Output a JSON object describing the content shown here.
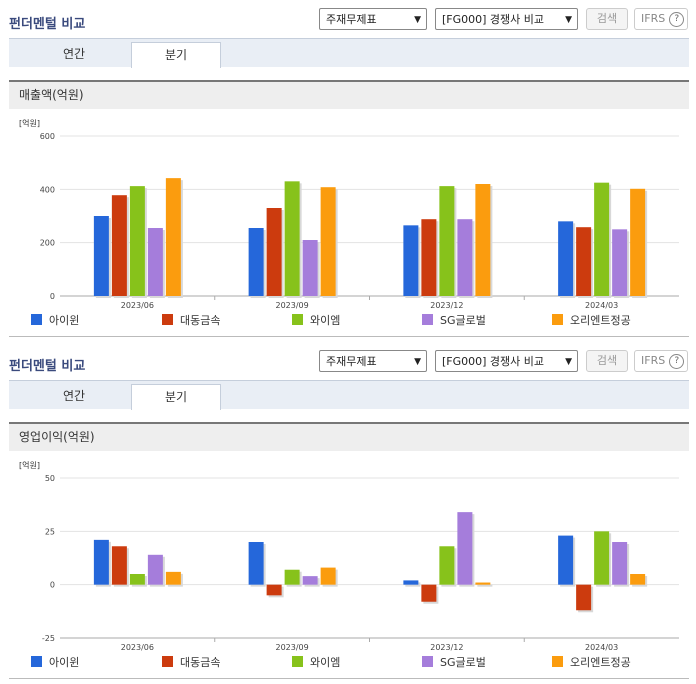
{
  "header": {
    "title": "펀더멘털 비교",
    "select_statement": "주재무제표",
    "select_compare": "[FG000] 경쟁사 비교",
    "search_button": "검색",
    "ifrs_label": "IFRS",
    "help_glyph": "?"
  },
  "tabs": [
    {
      "label": "연간"
    },
    {
      "label": "분기"
    }
  ],
  "colors": [
    "#2567da",
    "#cc3b0e",
    "#87c21b",
    "#a57ddb",
    "#fb9c0e"
  ],
  "chart_data": [
    {
      "type": "bar",
      "title": "매출액(억원)",
      "unit": "[억원]",
      "categories": [
        "2023/06",
        "2023/09",
        "2023/12",
        "2024/03"
      ],
      "ylim": [
        0,
        600
      ],
      "yticks": [
        "0",
        "200",
        "400",
        "600"
      ],
      "series": [
        {
          "name": "아이윈",
          "values": [
            300,
            255,
            265,
            280
          ]
        },
        {
          "name": "대동금속",
          "values": [
            378,
            330,
            288,
            258
          ]
        },
        {
          "name": "와이엠",
          "values": [
            412,
            430,
            412,
            425
          ]
        },
        {
          "name": "SG글로벌",
          "values": [
            255,
            210,
            288,
            250
          ]
        },
        {
          "name": "오리엔트정공",
          "values": [
            442,
            408,
            420,
            402
          ]
        }
      ]
    },
    {
      "type": "bar",
      "title": "영업이익(억원)",
      "unit": "[억원]",
      "categories": [
        "2023/06",
        "2023/09",
        "2023/12",
        "2024/03"
      ],
      "ylim": [
        -25,
        50
      ],
      "yticks": [
        "-25",
        "0",
        "25",
        "50"
      ],
      "series": [
        {
          "name": "아이윈",
          "values": [
            21,
            20,
            2,
            23
          ]
        },
        {
          "name": "대동금속",
          "values": [
            18,
            -5,
            -8,
            -12
          ]
        },
        {
          "name": "와이엠",
          "values": [
            5,
            7,
            18,
            25
          ]
        },
        {
          "name": "SG글로벌",
          "values": [
            14,
            4,
            34,
            20
          ]
        },
        {
          "name": "오리엔트정공",
          "values": [
            6,
            8,
            1,
            5
          ]
        }
      ]
    }
  ]
}
